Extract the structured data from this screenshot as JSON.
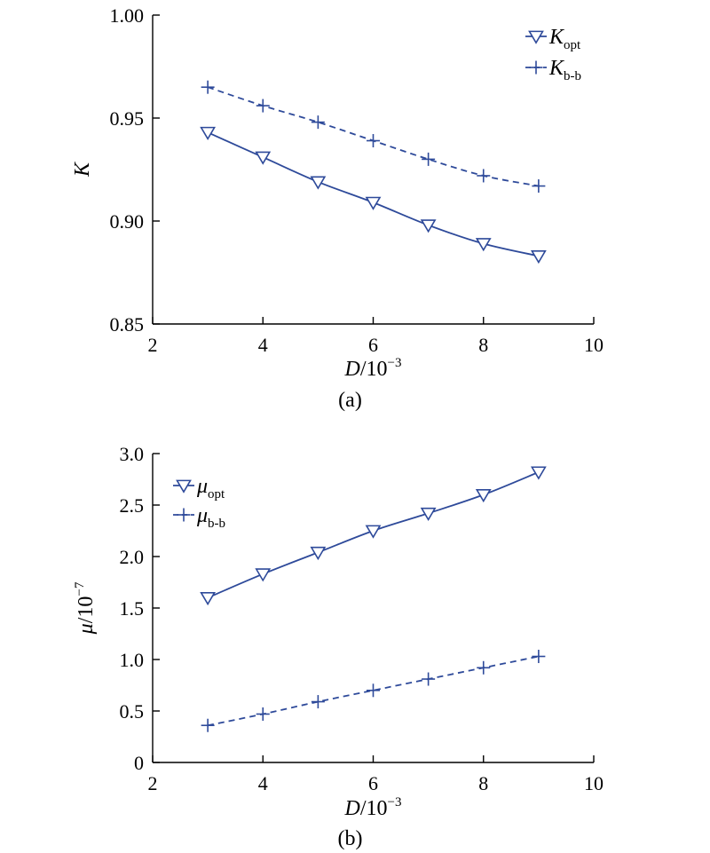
{
  "chart_data": [
    {
      "type": "line",
      "panel_label": "(a)",
      "xlabel": {
        "var": "D",
        "rest": "/10",
        "exp": "−3"
      },
      "ylabel": {
        "var": "K",
        "rest": "",
        "exp": ""
      },
      "xlim": [
        2,
        10
      ],
      "ylim": [
        0.85,
        1.0
      ],
      "xticks": [
        2,
        4,
        6,
        8,
        10
      ],
      "xtick_labels": [
        "2",
        "4",
        "6",
        "8",
        "10"
      ],
      "yticks": [
        0.85,
        0.9,
        0.95,
        1.0
      ],
      "ytick_labels": [
        "0.85",
        "0.90",
        "0.95",
        "1.00"
      ],
      "legend_position": "top-right",
      "x": [
        3,
        4,
        5,
        6,
        7,
        8,
        9
      ],
      "series": [
        {
          "name": "K",
          "sub": "opt",
          "marker": "triangle-down",
          "line": "solid",
          "values": [
            0.943,
            0.931,
            0.919,
            0.909,
            0.898,
            0.889,
            0.883
          ]
        },
        {
          "name": "K",
          "sub": "b-b",
          "marker": "plus",
          "line": "dashed",
          "values": [
            0.965,
            0.956,
            0.948,
            0.939,
            0.93,
            0.922,
            0.917
          ]
        }
      ],
      "color": "#2e4a9a"
    },
    {
      "type": "line",
      "panel_label": "(b)",
      "xlabel": {
        "var": "D",
        "rest": "/10",
        "exp": "−3"
      },
      "ylabel": {
        "var": "μ",
        "rest": "/10",
        "exp": "−7"
      },
      "xlim": [
        2,
        10
      ],
      "ylim": [
        0,
        3.0
      ],
      "xticks": [
        2,
        4,
        6,
        8,
        10
      ],
      "xtick_labels": [
        "2",
        "4",
        "6",
        "8",
        "10"
      ],
      "yticks": [
        0,
        0.5,
        1.0,
        1.5,
        2.0,
        2.5,
        3.0
      ],
      "ytick_labels": [
        "0",
        "0.5",
        "1.0",
        "1.5",
        "2.0",
        "2.5",
        "3.0"
      ],
      "legend_position": "top-left",
      "x": [
        3,
        4,
        5,
        6,
        7,
        8,
        9
      ],
      "series": [
        {
          "name": "μ",
          "sub": "opt",
          "marker": "triangle-down",
          "line": "solid",
          "values": [
            1.6,
            1.83,
            2.04,
            2.25,
            2.42,
            2.6,
            2.82
          ]
        },
        {
          "name": "μ",
          "sub": "b-b",
          "marker": "plus",
          "line": "dashed",
          "values": [
            0.36,
            0.47,
            0.59,
            0.7,
            0.81,
            0.92,
            1.03
          ]
        }
      ],
      "color": "#2e4a9a"
    }
  ]
}
